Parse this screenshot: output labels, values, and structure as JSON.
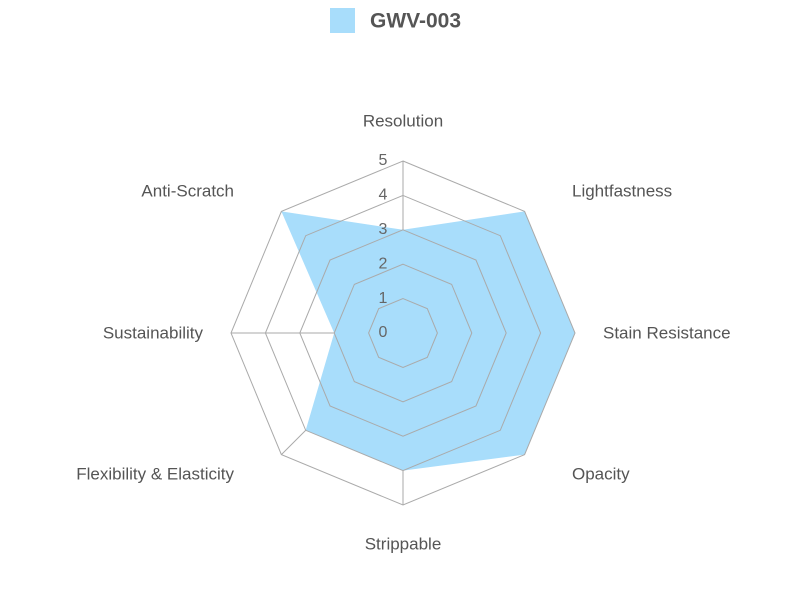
{
  "chart_data": {
    "type": "radar",
    "categories": [
      "Resolution",
      "Lightfastness",
      "Stain Resistance",
      "Opacity",
      "Strippable",
      "Flexibility & Elasticity",
      "Sustainability",
      "Anti-Scratch"
    ],
    "series": [
      {
        "name": "GWV-003",
        "color": "#a8ddfb",
        "values": [
          3,
          5,
          5,
          5,
          4,
          4,
          2,
          5
        ]
      }
    ],
    "ylim": [
      0,
      5
    ],
    "yticks": [
      0,
      1,
      2,
      3,
      4,
      5
    ],
    "grid": true
  }
}
